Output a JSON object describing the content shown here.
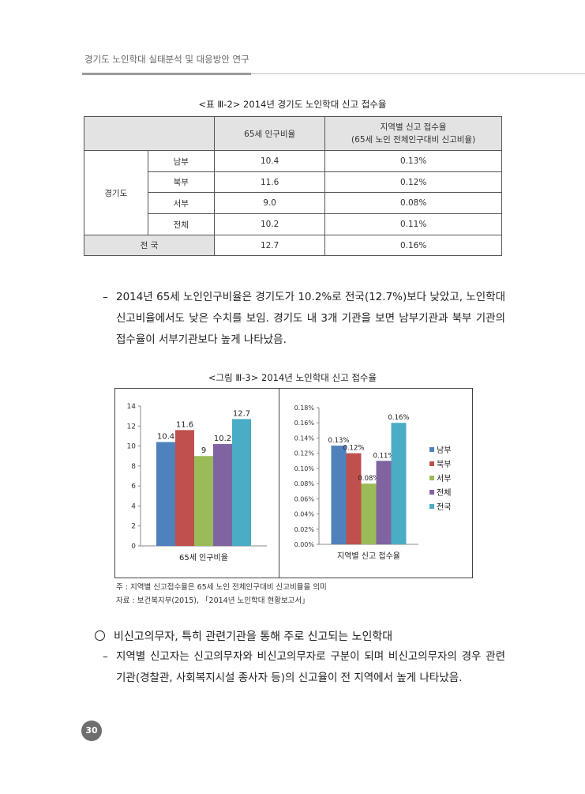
{
  "header": {
    "title": "경기도 노인학대 실태분석 및 대응방안 연구"
  },
  "table": {
    "caption": "<표 Ⅲ-2> 2014년 경기도 노인학대 신고 접수율",
    "col1_header": "65세 인구비율",
    "col2_header_line1": "지역별 신고 접수율",
    "col2_header_line2": "(65세 노인 전체인구대비 신고비율)",
    "group_label": "경기도",
    "rows": [
      {
        "label": "남부",
        "ratio": "10.4",
        "rate": "0.13%"
      },
      {
        "label": "북부",
        "ratio": "11.6",
        "rate": "0.12%"
      },
      {
        "label": "서부",
        "ratio": "9.0",
        "rate": "0.08%"
      },
      {
        "label": "전체",
        "ratio": "10.2",
        "rate": "0.11%"
      }
    ],
    "national": {
      "label": "전 국",
      "ratio": "12.7",
      "rate": "0.16%"
    }
  },
  "paragraph1": {
    "dash": "–",
    "text": "2014년 65세 노인인구비율은 경기도가 10.2%로 전국(12.7%)보다 낮았고, 노인학대 신고비율에서도 낮은 수치를 보임. 경기도 내 3개 기관을 보면 남부기관과 북부 기관의 접수율이 서부기관보다 높게 나타났음."
  },
  "figure": {
    "caption": "<그림 Ⅲ-3> 2014년 노인학대 신고 접수율"
  },
  "chart_data": [
    {
      "type": "bar",
      "categories": [
        "남부",
        "북부",
        "서부",
        "전체",
        "전국"
      ],
      "values": [
        10.4,
        11.6,
        9.0,
        10.2,
        12.7
      ],
      "data_labels": [
        "10.4",
        "11.6",
        "9",
        "10.2",
        "12.7"
      ],
      "xlabel": "65세 인구비율",
      "ylim": [
        0,
        14
      ],
      "yticks": [
        "0",
        "2",
        "4",
        "6",
        "8",
        "10",
        "12",
        "14"
      ],
      "legend": "none",
      "colors": [
        "#4f81bd",
        "#c0504d",
        "#9bbb59",
        "#8064a2",
        "#4bacc6"
      ]
    },
    {
      "type": "bar",
      "categories": [
        "남부",
        "북부",
        "서부",
        "전체",
        "전국"
      ],
      "values": [
        0.13,
        0.12,
        0.08,
        0.11,
        0.16
      ],
      "data_labels": [
        "0.13%",
        "0.12%",
        "0.08%",
        "0.11%",
        "0.16%"
      ],
      "xlabel": "지역별 신고 접수율",
      "ylim": [
        0,
        0.18
      ],
      "yticks": [
        "0.00%",
        "0.02%",
        "0.04%",
        "0.06%",
        "0.08%",
        "0.10%",
        "0.12%",
        "0.14%",
        "0.16%",
        "0.18%"
      ],
      "legend": "right",
      "colors": [
        "#4f81bd",
        "#c0504d",
        "#9bbb59",
        "#8064a2",
        "#4bacc6"
      ]
    }
  ],
  "notes": {
    "note1": "주 : 지역별 신고접수율은 65세 노인 전체인구대비 신고비율을 의미",
    "note2": "자료 : 보건복지부(2015), 「2014년 노인학대 현황보고서」"
  },
  "section": {
    "heading": "비신고의무자, 특히 관련기관을 통해 주로 신고되는 노인학대"
  },
  "paragraph2": {
    "dash": "–",
    "text": "지역별 신고자는 신고의무자와 비신고의무자로 구분이 되며 비신고의무자의 경우 관련기관(경찰관, 사회복지시설 종사자 등)의 신고율이 전 지역에서 높게 나타났음."
  },
  "page_number": "30"
}
